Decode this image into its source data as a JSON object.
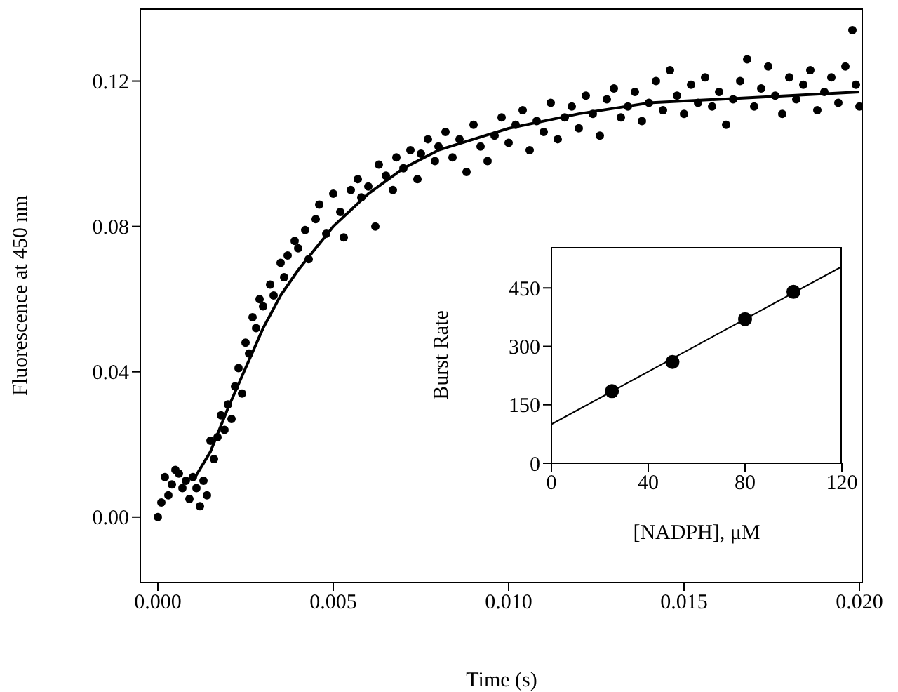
{
  "chart_data": [
    {
      "type": "scatter",
      "xlabel": "Time (s)",
      "ylabel": "Fluorescence at 450 nm",
      "xlim": [
        -0.0005,
        0.0201
      ],
      "ylim": [
        -0.018,
        0.14
      ],
      "xticks": [
        {
          "value": 0,
          "label": "0.000"
        },
        0.005,
        {
          "value": 0.01,
          "label": "0.010"
        },
        0.015,
        {
          "value": 0.02,
          "label": "0.020"
        }
      ],
      "yticks": [
        {
          "value": 0,
          "label": "0.00"
        },
        0.04,
        0.08,
        0.12
      ],
      "marker": "circle",
      "series": [
        {
          "color": "#000000",
          "x": [
            0.0,
            0.0001,
            0.0002,
            0.0003,
            0.0004,
            0.0005,
            0.0006,
            0.0007,
            0.0008,
            0.0009,
            0.001,
            0.0011,
            0.0012,
            0.0013,
            0.0014,
            0.0015,
            0.0016,
            0.0017,
            0.0018,
            0.0019,
            0.002,
            0.0021,
            0.0022,
            0.0023,
            0.0024,
            0.0025,
            0.0026,
            0.0027,
            0.0028,
            0.0029,
            0.003,
            0.0032,
            0.0033,
            0.0035,
            0.0036,
            0.0037,
            0.0039,
            0.004,
            0.0042,
            0.0043,
            0.0045,
            0.0046,
            0.0048,
            0.005,
            0.0052,
            0.0053,
            0.0055,
            0.0057,
            0.0058,
            0.006,
            0.0062,
            0.0063,
            0.0065,
            0.0067,
            0.0068,
            0.007,
            0.0072,
            0.0074,
            0.0075,
            0.0077,
            0.0079,
            0.008,
            0.0082,
            0.0084,
            0.0086,
            0.0088,
            0.009,
            0.0092,
            0.0094,
            0.0096,
            0.0098,
            0.01,
            0.0102,
            0.0104,
            0.0106,
            0.0108,
            0.011,
            0.0112,
            0.0114,
            0.0116,
            0.0118,
            0.012,
            0.0122,
            0.0124,
            0.0126,
            0.0128,
            0.013,
            0.0132,
            0.0134,
            0.0136,
            0.0138,
            0.014,
            0.0142,
            0.0144,
            0.0146,
            0.0148,
            0.015,
            0.0152,
            0.0154,
            0.0156,
            0.0158,
            0.016,
            0.0162,
            0.0164,
            0.0166,
            0.0168,
            0.017,
            0.0172,
            0.0174,
            0.0176,
            0.0178,
            0.018,
            0.0182,
            0.0184,
            0.0186,
            0.0188,
            0.019,
            0.0192,
            0.0194,
            0.0196,
            0.0198,
            0.0199,
            0.02
          ],
          "values": [
            0.0,
            0.004,
            0.011,
            0.006,
            0.009,
            0.013,
            0.012,
            0.008,
            0.01,
            0.005,
            0.011,
            0.008,
            0.003,
            0.01,
            0.006,
            0.021,
            0.016,
            0.022,
            0.028,
            0.024,
            0.031,
            0.027,
            0.036,
            0.041,
            0.034,
            0.048,
            0.045,
            0.055,
            0.052,
            0.06,
            0.058,
            0.064,
            0.061,
            0.07,
            0.066,
            0.072,
            0.076,
            0.074,
            0.079,
            0.071,
            0.082,
            0.086,
            0.078,
            0.089,
            0.084,
            0.077,
            0.09,
            0.093,
            0.088,
            0.091,
            0.08,
            0.097,
            0.094,
            0.09,
            0.099,
            0.096,
            0.101,
            0.093,
            0.1,
            0.104,
            0.098,
            0.102,
            0.106,
            0.099,
            0.104,
            0.095,
            0.108,
            0.102,
            0.098,
            0.105,
            0.11,
            0.103,
            0.108,
            0.112,
            0.101,
            0.109,
            0.106,
            0.114,
            0.104,
            0.11,
            0.113,
            0.107,
            0.116,
            0.111,
            0.105,
            0.115,
            0.118,
            0.11,
            0.113,
            0.117,
            0.109,
            0.114,
            0.12,
            0.112,
            0.123,
            0.116,
            0.111,
            0.119,
            0.114,
            0.121,
            0.113,
            0.117,
            0.108,
            0.115,
            0.12,
            0.126,
            0.113,
            0.118,
            0.124,
            0.116,
            0.111,
            0.121,
            0.115,
            0.119,
            0.123,
            0.112,
            0.117,
            0.121,
            0.114,
            0.124,
            0.134,
            0.119,
            0.113
          ]
        },
        {
          "type": "line",
          "color": "#000000",
          "marker": "none",
          "x": [
            0.001,
            0.0015,
            0.002,
            0.0025,
            0.003,
            0.0035,
            0.004,
            0.005,
            0.006,
            0.007,
            0.008,
            0.009,
            0.01,
            0.012,
            0.014,
            0.016,
            0.018,
            0.02
          ],
          "values": [
            0.01,
            0.018,
            0.03,
            0.041,
            0.052,
            0.061,
            0.068,
            0.08,
            0.089,
            0.096,
            0.101,
            0.104,
            0.107,
            0.111,
            0.114,
            0.115,
            0.116,
            0.117
          ]
        }
      ]
    },
    {
      "type": "scatter",
      "xlabel": "[NADPH], μM",
      "ylabel": "Burst Rate",
      "xlim": [
        0,
        120
      ],
      "ylim": [
        0,
        555
      ],
      "xticks": [
        0,
        40,
        80,
        120
      ],
      "yticks": [
        0,
        150,
        300,
        450
      ],
      "marker": "circle",
      "series": [
        {
          "color": "#000000",
          "x": [
            25,
            50,
            80,
            100
          ],
          "values": [
            185,
            260,
            370,
            440
          ]
        },
        {
          "type": "line",
          "color": "#000000",
          "marker": "none",
          "x": [
            0,
            120
          ],
          "values": [
            100,
            505
          ]
        }
      ]
    }
  ]
}
